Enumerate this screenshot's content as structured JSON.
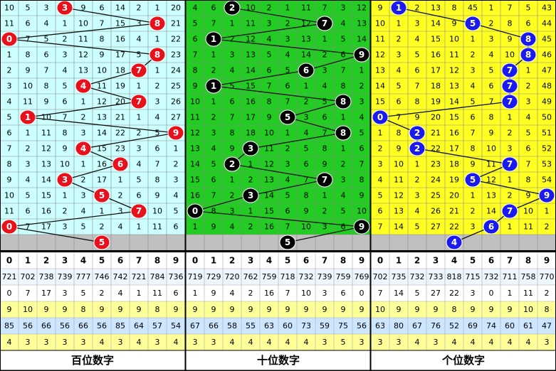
{
  "panels": [
    {
      "label": "百位数字",
      "bg": "#ccffff",
      "ball_color": "#e8101a",
      "draws": [
        3,
        8,
        0,
        8,
        7,
        4,
        7,
        1,
        9,
        4,
        6,
        3,
        5,
        7,
        0
      ],
      "next": 5,
      "rows": [
        [
          10,
          5,
          3,
          null,
          9,
          6,
          14,
          2,
          1,
          20
        ],
        [
          11,
          6,
          4,
          1,
          10,
          7,
          15,
          3,
          null,
          21
        ],
        [
          null,
          7,
          5,
          2,
          11,
          8,
          16,
          4,
          1,
          22
        ],
        [
          1,
          8,
          6,
          3,
          12,
          9,
          17,
          5,
          null,
          23
        ],
        [
          2,
          9,
          7,
          4,
          13,
          10,
          18,
          null,
          1,
          24
        ],
        [
          3,
          10,
          8,
          5,
          null,
          11,
          19,
          1,
          2,
          25
        ],
        [
          4,
          11,
          9,
          6,
          1,
          12,
          20,
          null,
          3,
          26
        ],
        [
          5,
          null,
          10,
          7,
          2,
          13,
          21,
          1,
          4,
          27
        ],
        [
          6,
          1,
          11,
          8,
          3,
          14,
          22,
          2,
          5,
          null
        ],
        [
          7,
          2,
          12,
          9,
          null,
          15,
          23,
          3,
          6,
          1
        ],
        [
          8,
          3,
          13,
          10,
          1,
          16,
          null,
          4,
          7,
          2
        ],
        [
          9,
          4,
          14,
          null,
          2,
          17,
          1,
          5,
          8,
          3
        ],
        [
          10,
          5,
          15,
          1,
          3,
          null,
          2,
          6,
          9,
          4
        ],
        [
          11,
          6,
          16,
          2,
          4,
          1,
          3,
          null,
          10,
          5
        ],
        [
          null,
          7,
          17,
          3,
          5,
          2,
          4,
          1,
          11,
          6
        ]
      ],
      "header": [
        0,
        1,
        2,
        3,
        4,
        5,
        6,
        7,
        8,
        9
      ],
      "stats": [
        [
          721,
          702,
          738,
          739,
          777,
          746,
          742,
          721,
          784,
          736
        ],
        [
          0,
          7,
          17,
          3,
          5,
          2,
          4,
          1,
          11,
          6
        ],
        [
          9,
          10,
          9,
          9,
          8,
          9,
          9,
          9,
          8,
          9
        ],
        [
          85,
          56,
          66,
          56,
          66,
          56,
          85,
          64,
          57,
          54
        ],
        [
          4,
          3,
          3,
          3,
          3,
          4,
          3,
          4,
          3,
          4
        ]
      ]
    },
    {
      "label": "十位数字",
      "bg": "#22cc22",
      "ball_color": "#000000",
      "draws": [
        2,
        7,
        1,
        9,
        6,
        1,
        8,
        5,
        8,
        3,
        2,
        7,
        3,
        0,
        9
      ],
      "next": 5,
      "rows": [
        [
          4,
          6,
          null,
          10,
          2,
          1,
          11,
          7,
          3,
          12
        ],
        [
          5,
          7,
          1,
          11,
          3,
          2,
          12,
          null,
          4,
          13
        ],
        [
          6,
          null,
          2,
          12,
          4,
          3,
          13,
          1,
          5,
          14
        ],
        [
          7,
          1,
          3,
          13,
          5,
          4,
          14,
          2,
          6,
          null
        ],
        [
          8,
          2,
          4,
          14,
          6,
          5,
          null,
          3,
          7,
          1
        ],
        [
          9,
          null,
          5,
          15,
          7,
          6,
          1,
          4,
          8,
          2
        ],
        [
          10,
          1,
          6,
          16,
          8,
          7,
          2,
          5,
          null,
          3
        ],
        [
          11,
          2,
          7,
          17,
          9,
          null,
          3,
          6,
          1,
          4
        ],
        [
          12,
          3,
          8,
          18,
          10,
          1,
          4,
          7,
          null,
          5
        ],
        [
          13,
          4,
          9,
          null,
          11,
          2,
          5,
          8,
          1,
          6
        ],
        [
          14,
          5,
          null,
          1,
          12,
          3,
          6,
          9,
          2,
          7
        ],
        [
          15,
          6,
          1,
          2,
          13,
          4,
          7,
          null,
          3,
          8
        ],
        [
          16,
          7,
          2,
          null,
          14,
          5,
          8,
          1,
          4,
          9
        ],
        [
          null,
          8,
          3,
          1,
          15,
          6,
          9,
          2,
          5,
          10
        ],
        [
          1,
          9,
          4,
          2,
          16,
          7,
          10,
          3,
          6,
          null
        ]
      ],
      "header": [
        0,
        1,
        2,
        3,
        4,
        5,
        6,
        7,
        8,
        9
      ],
      "stats": [
        [
          719,
          729,
          720,
          762,
          759,
          718,
          732,
          739,
          759,
          769
        ],
        [
          1,
          9,
          4,
          2,
          16,
          7,
          10,
          3,
          6,
          0
        ],
        [
          9,
          9,
          9,
          9,
          9,
          9,
          9,
          9,
          9,
          9
        ],
        [
          67,
          66,
          58,
          55,
          63,
          60,
          73,
          59,
          75,
          56
        ],
        [
          3,
          3,
          4,
          4,
          4,
          4,
          4,
          3,
          5,
          3
        ]
      ]
    },
    {
      "label": "个位数字",
      "bg": "#ffff22",
      "ball_color": "#1a1aee",
      "draws": [
        1,
        5,
        8,
        8,
        7,
        7,
        7,
        0,
        2,
        2,
        7,
        5,
        9,
        7,
        6
      ],
      "next": 4,
      "rows": [
        [
          9,
          null,
          2,
          13,
          8,
          45,
          1,
          7,
          5,
          43
        ],
        [
          10,
          1,
          3,
          14,
          9,
          null,
          2,
          8,
          6,
          44
        ],
        [
          11,
          2,
          4,
          15,
          10,
          1,
          3,
          9,
          null,
          45
        ],
        [
          12,
          3,
          5,
          16,
          11,
          2,
          4,
          10,
          null,
          46
        ],
        [
          13,
          4,
          6,
          17,
          12,
          3,
          5,
          null,
          1,
          47
        ],
        [
          14,
          5,
          7,
          18,
          13,
          4,
          6,
          null,
          2,
          48
        ],
        [
          15,
          6,
          8,
          19,
          14,
          5,
          7,
          null,
          3,
          49
        ],
        [
          null,
          7,
          9,
          20,
          15,
          6,
          8,
          1,
          4,
          50
        ],
        [
          1,
          8,
          null,
          21,
          16,
          7,
          9,
          2,
          5,
          51
        ],
        [
          2,
          9,
          null,
          22,
          17,
          8,
          10,
          3,
          6,
          52
        ],
        [
          3,
          10,
          1,
          23,
          18,
          9,
          11,
          null,
          7,
          53
        ],
        [
          4,
          11,
          2,
          24,
          19,
          null,
          12,
          1,
          8,
          54
        ],
        [
          5,
          12,
          3,
          25,
          20,
          1,
          13,
          2,
          9,
          null
        ],
        [
          6,
          13,
          4,
          26,
          21,
          2,
          14,
          null,
          10,
          1
        ],
        [
          7,
          14,
          5,
          27,
          22,
          3,
          null,
          1,
          11,
          2
        ]
      ],
      "header": [
        0,
        1,
        2,
        3,
        4,
        5,
        6,
        7,
        8,
        9
      ],
      "stats": [
        [
          702,
          735,
          732,
          733,
          818,
          715,
          732,
          711,
          758,
          770
        ],
        [
          7,
          14,
          5,
          27,
          22,
          3,
          0,
          1,
          11,
          2
        ],
        [
          10,
          9,
          9,
          9,
          8,
          9,
          9,
          9,
          10,
          8
        ],
        [
          63,
          80,
          67,
          76,
          52,
          69,
          74,
          60,
          61,
          47
        ],
        [
          3,
          3,
          4,
          3,
          4,
          4,
          4,
          4,
          4,
          3
        ]
      ]
    }
  ],
  "stat_row_colors": [
    "#eef6ff",
    "#ffffff",
    "#ffff99",
    "#cce6ff",
    "#ffff99"
  ]
}
